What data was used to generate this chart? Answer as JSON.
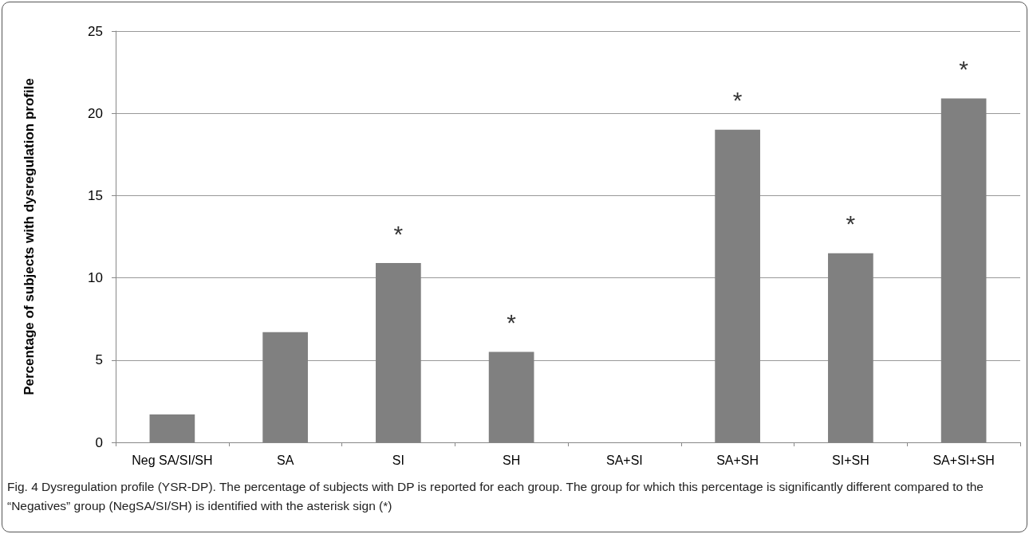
{
  "chart_data": {
    "type": "bar",
    "ylabel": "Percentage of subjects with dysregulation profile",
    "categories": [
      "Neg SA/SI/SH",
      "SA",
      "SI",
      "SH",
      "SA+SI",
      "SA+SH",
      "SI+SH",
      "SA+SI+SH"
    ],
    "values": [
      1.7,
      6.7,
      10.9,
      5.5,
      0,
      19.0,
      11.5,
      20.9
    ],
    "color": "#808080",
    "ylim": [
      0,
      25
    ],
    "yticks": [
      0,
      5,
      10,
      15,
      20,
      25
    ],
    "grid": "y",
    "annotations": [
      {
        "text": "*",
        "x": "SI",
        "y": 10.9
      },
      {
        "text": "*",
        "x": "SH",
        "y": 5.5
      },
      {
        "text": "*",
        "x": "SA+SH",
        "y": 19.0
      },
      {
        "text": "*",
        "x": "SI+SH",
        "y": 11.5
      },
      {
        "text": "*",
        "x": "SA+SI+SH",
        "y": 20.9
      },
      "Fig. 4 Dysregulation profile (YSR-DP). The percentage of subjects with DP is reported for each group. The group for which this percentage is significantly different compared to the “Negatives” group (NegSA/SI/SH) is identified with the asterisk sign (*)"
    ]
  }
}
